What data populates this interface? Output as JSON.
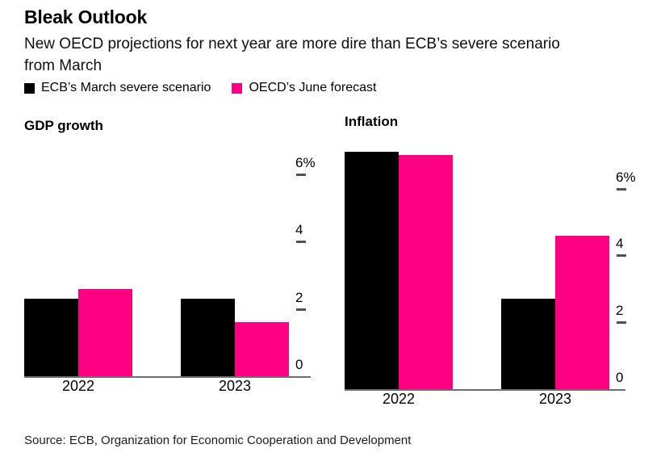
{
  "header": {
    "title": "Bleak Outlook",
    "subtitle": "New OECD projections for next year are more dire than ECB’s severe scenario\nfrom March"
  },
  "legend": [
    {
      "id": "ecb",
      "label": "ECB’s March severe scenario",
      "color": "#000000"
    },
    {
      "id": "oecd",
      "label": "OECD’s June forecast",
      "color": "#ff0082"
    }
  ],
  "chart_data": [
    {
      "type": "bar",
      "title": "GDP growth",
      "categories": [
        "2022",
        "2023"
      ],
      "series": [
        {
          "id": "ecb",
          "name": "ECB’s March severe scenario",
          "color": "#000000",
          "values": [
            2.3,
            2.3
          ]
        },
        {
          "id": "oecd",
          "name": "OECD’s June forecast",
          "color": "#ff0082",
          "values": [
            2.6,
            1.6
          ]
        }
      ],
      "unit": "%",
      "ylim": [
        0,
        7.2
      ],
      "yticks": [
        {
          "value": 0,
          "label": "0"
        },
        {
          "value": 2,
          "label": "2"
        },
        {
          "value": 4,
          "label": "4"
        },
        {
          "value": 6,
          "label": "6%"
        }
      ],
      "grid": false,
      "tick_side": "right"
    },
    {
      "type": "bar",
      "title": "Inflation",
      "categories": [
        "2022",
        "2023"
      ],
      "series": [
        {
          "id": "ecb",
          "name": "ECB’s March severe scenario",
          "color": "#000000",
          "values": [
            7.1,
            2.7
          ]
        },
        {
          "id": "oecd",
          "name": "OECD’s June forecast",
          "color": "#ff0082",
          "values": [
            7.0,
            4.6
          ]
        }
      ],
      "unit": "%",
      "ylim": [
        0,
        7.25
      ],
      "yticks": [
        {
          "value": 0,
          "label": "0"
        },
        {
          "value": 2,
          "label": "2"
        },
        {
          "value": 4,
          "label": "4"
        },
        {
          "value": 6,
          "label": "6%"
        }
      ],
      "grid": false,
      "tick_side": "right"
    }
  ],
  "source": "Source: ECB, Organization for Economic Cooperation and Development"
}
